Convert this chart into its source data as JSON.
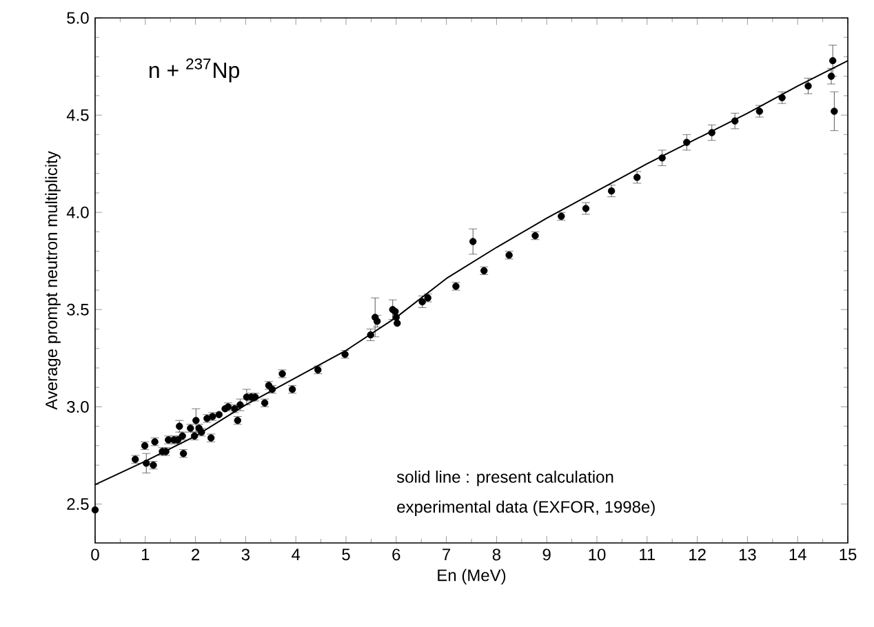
{
  "chart_data": {
    "type": "scatter",
    "xlabel": "En (MeV)",
    "ylabel": "Average prompt neutron multiplicity",
    "xlim": [
      0,
      15
    ],
    "ylim": [
      2.3,
      5.0
    ],
    "xticks": [
      0,
      1,
      2,
      3,
      4,
      5,
      6,
      7,
      8,
      9,
      10,
      11,
      12,
      13,
      14,
      15
    ],
    "yticks": [
      {
        "value": 2.5,
        "label": "2.5"
      },
      {
        "value": 3.0,
        "label": "3.0"
      },
      {
        "value": 3.5,
        "label": "3.5"
      },
      {
        "value": 4.0,
        "label": "4.0"
      },
      {
        "value": 4.5,
        "label": "4.5"
      },
      {
        "value": 5.0,
        "label": "5.0"
      }
    ],
    "grid": false,
    "annotations": [
      "n + $^{237}$Np",
      "solid line : present calculation",
      "experimental data (EXFOR, 1998e)"
    ],
    "series": [
      {
        "color": "#000000",
        "marker": "circle",
        "x": [
          0.0,
          0.8,
          0.99,
          1.02,
          1.19,
          1.16,
          1.34,
          1.41,
          1.46,
          1.57,
          1.65,
          1.68,
          1.74,
          1.76,
          1.9,
          1.98,
          2.01,
          2.07,
          2.12,
          2.23,
          2.31,
          2.34,
          2.47,
          2.59,
          2.65,
          2.78,
          2.84,
          2.89,
          3.02,
          3.11,
          3.19,
          3.38,
          3.46,
          3.53,
          3.73,
          3.93,
          4.44,
          4.98,
          5.49,
          5.58,
          5.62,
          5.93,
          5.98,
          6.0,
          6.02,
          6.52,
          6.63,
          7.19,
          7.53,
          7.75,
          8.25,
          8.77,
          9.29,
          9.78,
          10.29,
          10.8,
          11.3,
          11.79,
          12.29,
          12.75,
          13.24,
          13.69,
          14.21,
          14.7,
          14.67,
          14.73
        ],
        "values": [
          2.47,
          2.73,
          2.8,
          2.71,
          2.82,
          2.7,
          2.77,
          2.77,
          2.83,
          2.83,
          2.83,
          2.9,
          2.85,
          2.76,
          2.89,
          2.85,
          2.93,
          2.89,
          2.87,
          2.94,
          2.84,
          2.95,
          2.96,
          2.99,
          3.0,
          2.99,
          2.93,
          3.01,
          3.05,
          3.05,
          3.05,
          3.02,
          3.11,
          3.09,
          3.17,
          3.09,
          3.19,
          3.27,
          3.37,
          3.46,
          3.44,
          3.5,
          3.49,
          3.46,
          3.43,
          3.54,
          3.56,
          3.62,
          3.85,
          3.7,
          3.78,
          3.88,
          3.98,
          4.02,
          4.11,
          4.18,
          4.28,
          4.36,
          4.41,
          4.47,
          4.52,
          4.59,
          4.65,
          4.78,
          4.7,
          4.52
        ],
        "errors": [
          null,
          0.02,
          0.02,
          0.05,
          0.02,
          0.02,
          0.02,
          0.02,
          0.02,
          0.02,
          0.02,
          0.03,
          0.02,
          0.02,
          0.02,
          0.02,
          0.06,
          0.02,
          0.02,
          0.02,
          0.02,
          0.02,
          null,
          null,
          0.02,
          0.02,
          0.02,
          0.03,
          0.04,
          0.02,
          0.02,
          0.02,
          0.02,
          0.02,
          0.02,
          0.02,
          0.02,
          0.02,
          0.03,
          0.1,
          0.03,
          0.05,
          null,
          null,
          null,
          0.03,
          0.02,
          0.02,
          0.065,
          0.02,
          0.02,
          0.02,
          0.02,
          0.03,
          0.03,
          0.03,
          0.04,
          0.04,
          0.04,
          0.04,
          0.03,
          0.03,
          0.04,
          0.08,
          0.04,
          0.1
        ]
      },
      {
        "type": "line",
        "color": "#000000",
        "line_style": "solid",
        "x": [
          0,
          1,
          2,
          3,
          4,
          5,
          6,
          7,
          8,
          9,
          10,
          11,
          12,
          13,
          14,
          15
        ],
        "values": [
          2.6,
          2.72,
          2.85,
          3.01,
          3.15,
          3.29,
          3.46,
          3.66,
          3.82,
          3.97,
          4.11,
          4.25,
          4.38,
          4.51,
          4.65,
          4.78
        ]
      }
    ]
  }
}
